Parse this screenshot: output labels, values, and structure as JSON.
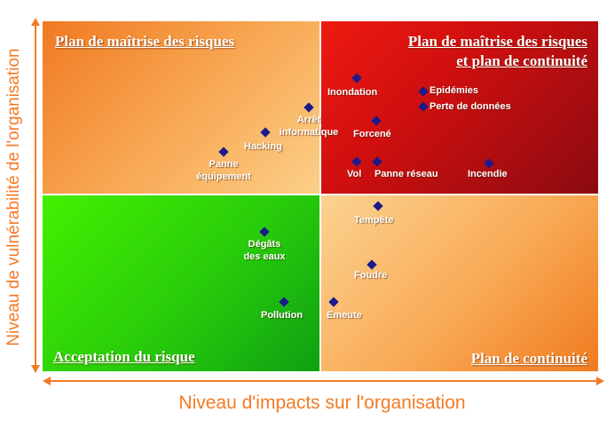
{
  "quadrants": {
    "top_left": {
      "title": "Plan de maîtrise des risques"
    },
    "top_right": {
      "title_line1": "Plan de maîtrise des risques",
      "title_line2": "et plan de continuité"
    },
    "bottom_left": {
      "title": "Acceptation du risque"
    },
    "bottom_right": {
      "title": "Plan de continuité"
    }
  },
  "axes": {
    "x_label": "Niveau d'impacts sur l'organisation",
    "y_label": "Niveau de vulnérabilité de l'organisation"
  },
  "colors": {
    "axis": "#f47a25",
    "marker": "#1a1a8c",
    "quadrant_top_left": "#f8aa56",
    "quadrant_top_right": "#cf0f0f",
    "quadrant_bottom_left": "#28cc0a",
    "quadrant_bottom_right": "#f9aa55"
  },
  "risks": [
    {
      "id": "inondation",
      "label": "Inondation"
    },
    {
      "id": "epidemies",
      "label": "Epidémies"
    },
    {
      "id": "perte-de-donnees",
      "label": "Perte de données"
    },
    {
      "id": "arret-informatique",
      "line1": "Arrêt",
      "line2": "informatique"
    },
    {
      "id": "forcene",
      "label": "Forcené"
    },
    {
      "id": "hacking",
      "label": "Hacking"
    },
    {
      "id": "panne-equipement",
      "line1": "Panne",
      "line2": "équipement"
    },
    {
      "id": "vol",
      "label": "Vol"
    },
    {
      "id": "panne-reseau",
      "label": "Panne réseau"
    },
    {
      "id": "incendie",
      "label": "Incendie"
    },
    {
      "id": "tempete",
      "label": "Tempête"
    },
    {
      "id": "degats-des-eaux",
      "line1": "Dégâts",
      "line2": "des eaux"
    },
    {
      "id": "foudre",
      "label": "Foudre"
    },
    {
      "id": "pollution",
      "label": "Pollution"
    },
    {
      "id": "emeute",
      "label": "Emeute"
    }
  ]
}
